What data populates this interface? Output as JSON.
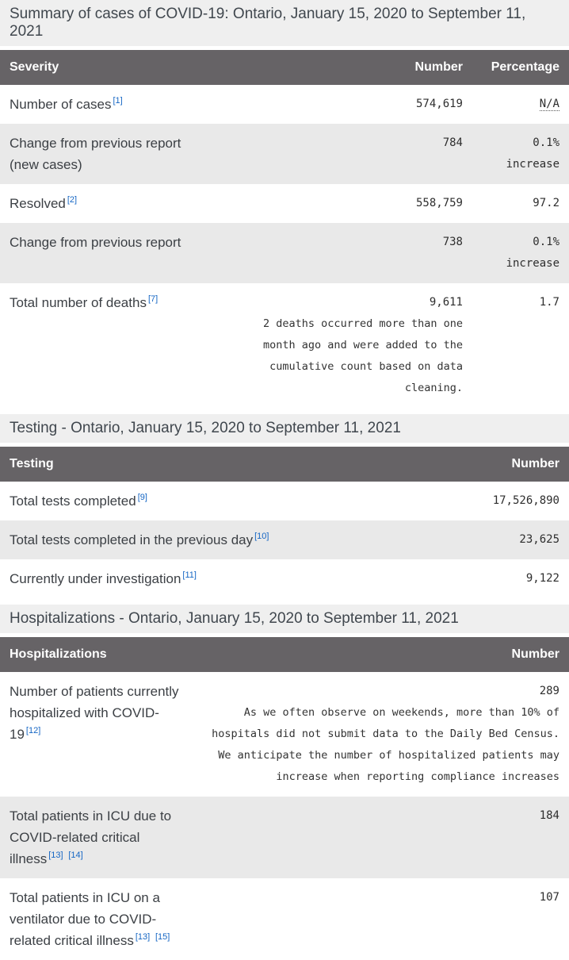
{
  "colors": {
    "header_bg": "#666366",
    "stripe_bg": "#e9e9e9",
    "caption_bg": "#efefef",
    "link_blue": "#1566c4",
    "header_text": "#ffffff"
  },
  "summary": {
    "caption": "Summary of cases of COVID-19: Ontario, January 15, 2020 to September 11, 2021",
    "col_severity": "Severity",
    "col_number": "Number",
    "col_percentage": "Percentage",
    "rows": [
      {
        "label": "Number of cases",
        "fn": "[1]",
        "number": "574,619",
        "percentage": "N/A"
      },
      {
        "label": "Change from previous report (new cases)",
        "number": "784",
        "percentage": "0.1% increase"
      },
      {
        "label": "Resolved",
        "fn": "[2]",
        "number": "558,759",
        "percentage": "97.2"
      },
      {
        "label": "Change from previous report",
        "number": "738",
        "percentage": "0.1% increase"
      },
      {
        "label": "Total number of deaths",
        "fn": "[7]",
        "number": "9,611",
        "note": "2 deaths occurred more than one month ago and were added to the cumulative count based on data cleaning.",
        "percentage": "1.7"
      }
    ]
  },
  "testing": {
    "caption": "Testing - Ontario, January 15, 2020 to September 11, 2021",
    "col_label": "Testing",
    "col_number": "Number",
    "rows": [
      {
        "label": "Total tests completed",
        "fn": "[9]",
        "number": "17,526,890"
      },
      {
        "label": "Total tests completed in the previous day",
        "fn": "[10]",
        "number": "23,625"
      },
      {
        "label": "Currently under investigation",
        "fn": "[11]",
        "number": "9,122"
      }
    ]
  },
  "hospitalizations": {
    "caption": "Hospitalizations - Ontario, January 15, 2020 to September 11, 2021",
    "col_label": "Hospitalizations",
    "col_number": "Number",
    "rows": [
      {
        "label": "Number of patients currently hospitalized with COVID-19",
        "fn": "[12]",
        "number": "289",
        "note": "As we often observe on weekends, more than 10% of hospitals did not submit data to the Daily Bed Census. We anticipate the number of hospitalized patients may increase when reporting compliance increases"
      },
      {
        "label": "Total patients in ICU due to COVID-related critical illness",
        "fn1": "[13]",
        "fn2": "[14]",
        "number": "184"
      },
      {
        "label": "Total patients in ICU on a ventilator due to COVID-related critical illness",
        "fn1": "[13]",
        "fn2": "[15]",
        "number": "107"
      }
    ]
  }
}
